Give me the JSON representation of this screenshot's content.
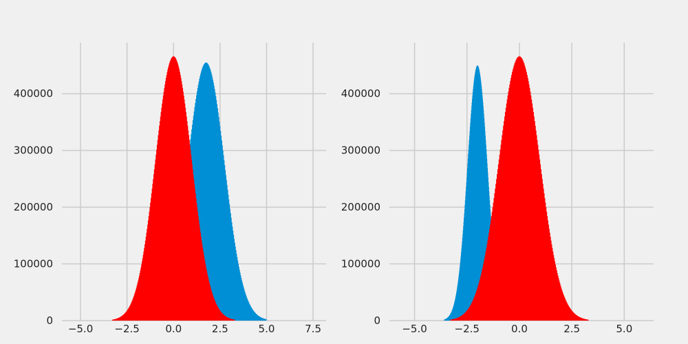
{
  "chart_data": [
    {
      "type": "histogram",
      "grid": true,
      "xlim": [
        -6.0,
        8.2
      ],
      "ylim": [
        0,
        490000
      ],
      "x_ticks": [
        -5.0,
        -2.5,
        0.0,
        2.5,
        5.0,
        7.5
      ],
      "x_tick_labels": [
        "−5.0",
        "−2.5",
        "0.0",
        "2.5",
        "5.0",
        "7.5"
      ],
      "y_ticks": [
        0,
        100000,
        200000,
        300000,
        400000
      ],
      "y_tick_labels": [
        "0",
        "100000",
        "200000",
        "300000",
        "400000"
      ],
      "series": [
        {
          "color": "#008fd5",
          "distribution": "normal",
          "mean": 1.75,
          "std": 1.0,
          "range": [
            -2.0,
            5.0
          ],
          "peak": 455000
        },
        {
          "color": "#ff0000",
          "distribution": "normal",
          "mean": 0.0,
          "std": 0.98,
          "range": [
            -3.3,
            3.3
          ],
          "peak": 466000
        }
      ]
    },
    {
      "type": "histogram",
      "grid": true,
      "xlim": [
        -6.2,
        6.4
      ],
      "ylim": [
        0,
        490000
      ],
      "x_ticks": [
        -5.0,
        -2.5,
        0.0,
        2.5,
        5.0
      ],
      "x_tick_labels": [
        "−5.0",
        "−2.5",
        "0.0",
        "2.5",
        "5.0"
      ],
      "y_ticks": [
        0,
        100000,
        200000,
        300000,
        400000
      ],
      "y_tick_labels": [
        "0",
        "100000",
        "200000",
        "300000",
        "400000"
      ],
      "series": [
        {
          "color": "#008fd5",
          "distribution": "normal",
          "mean": -2.0,
          "std": 0.48,
          "range": [
            -3.6,
            -0.4
          ],
          "peak": 450000
        },
        {
          "color": "#ff0000",
          "distribution": "normal",
          "mean": 0.0,
          "std": 0.98,
          "range": [
            -3.3,
            3.3
          ],
          "peak": 466000
        }
      ]
    }
  ]
}
